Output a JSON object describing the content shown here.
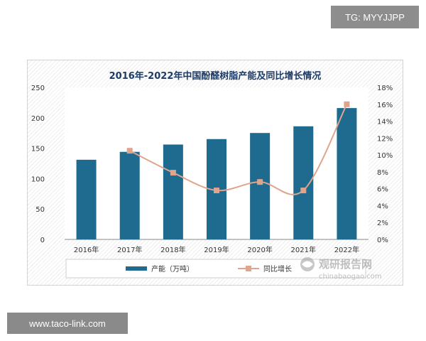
{
  "watermarks": {
    "top": "TG: MYYJJPP",
    "bottom": "www.taco-link.com"
  },
  "chart_data": {
    "type": "bar",
    "title": "2016年-2022年中国酚醛树脂产能及同比增长情况",
    "categories": [
      "2016年",
      "2017年",
      "2018年",
      "2019年",
      "2020年",
      "2021年",
      "2022年"
    ],
    "series": [
      {
        "name": "产能（万吨）",
        "type": "bar",
        "axis": "left",
        "values": [
          131,
          144,
          156,
          165,
          175,
          186,
          216
        ],
        "color": "#1f6a8f"
      },
      {
        "name": "同比增长",
        "type": "line",
        "axis": "right",
        "values": [
          null,
          10.5,
          7.9,
          5.8,
          6.8,
          5.8,
          16.0
        ],
        "color": "#e0a48c"
      }
    ],
    "y_left": {
      "min": 0,
      "max": 250,
      "ticks": [
        "0",
        "50",
        "100",
        "150",
        "200",
        "250"
      ]
    },
    "y_right": {
      "min": 0,
      "max": 18,
      "ticks": [
        "0%",
        "2%",
        "4%",
        "6%",
        "8%",
        "10%",
        "12%",
        "14%",
        "16%",
        "18%"
      ]
    },
    "grid": false,
    "legend_position": "bottom"
  },
  "source_watermark": {
    "name": "观研报告网",
    "url": "chinabaogao.com"
  }
}
